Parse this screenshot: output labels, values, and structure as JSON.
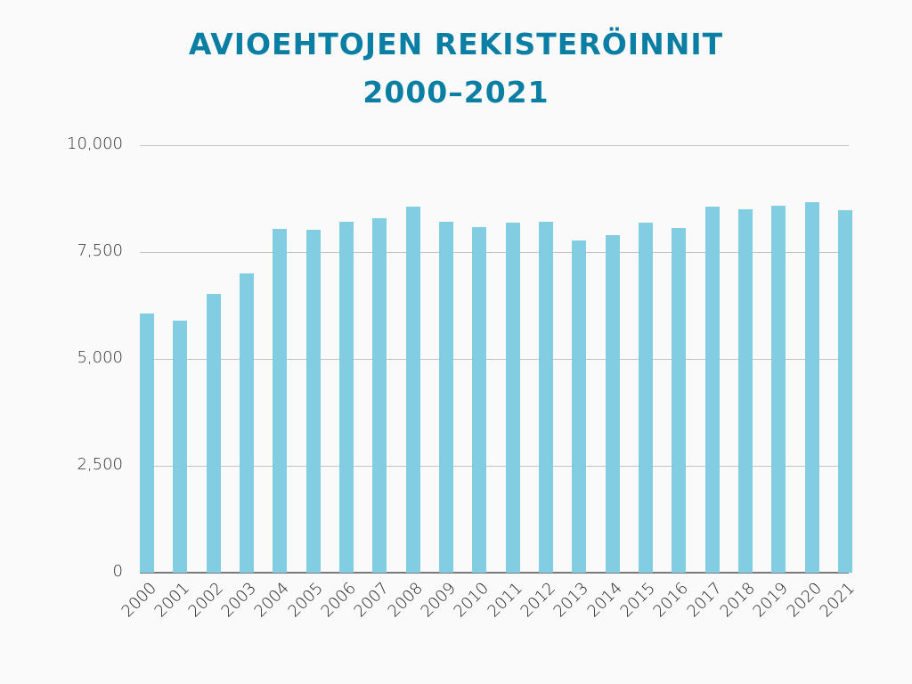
{
  "title": {
    "line1": "AVIOEHTOJEN REKISTERÖINNIT",
    "line2": "2000–2021"
  },
  "colors": {
    "title": "#0a7fa3",
    "bar": "#82cde1",
    "grid": "#c4c4c4",
    "axis": "#7a7a7a",
    "background": "#fafafa"
  },
  "y_ticks": [
    "10,000",
    "7,500",
    "5,000",
    "2,500",
    "0"
  ],
  "chart_data": {
    "type": "bar",
    "title": "AVIOEHTOJEN REKISTERÖINNIT 2000–2021",
    "xlabel": "",
    "ylabel": "",
    "ylim": [
      0,
      10000
    ],
    "yticks": [
      0,
      2500,
      5000,
      7500,
      10000
    ],
    "grid": true,
    "legend": null,
    "categories": [
      "2000",
      "2001",
      "2002",
      "2003",
      "2004",
      "2005",
      "2006",
      "2007",
      "2008",
      "2009",
      "2010",
      "2011",
      "2012",
      "2013",
      "2014",
      "2015",
      "2016",
      "2017",
      "2018",
      "2019",
      "2020",
      "2021"
    ],
    "values": [
      6060,
      5900,
      6520,
      7000,
      8040,
      8020,
      8200,
      8290,
      8560,
      8200,
      8080,
      8190,
      8200,
      7770,
      7890,
      8190,
      8060,
      8560,
      8500,
      8580,
      8670,
      8480
    ]
  }
}
